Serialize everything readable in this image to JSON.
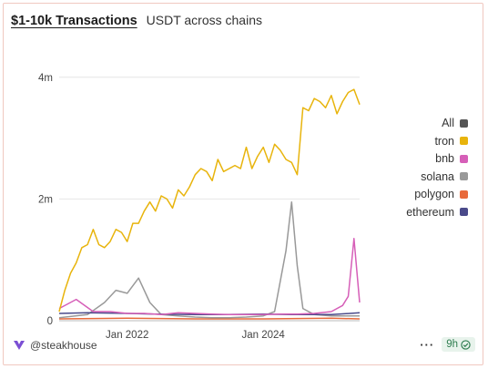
{
  "header": {
    "title": "$1-10k Transactions",
    "subtitle": "USDT across chains"
  },
  "footer": {
    "author": "@steakhouse",
    "more": "···",
    "age": "9h"
  },
  "colors": {
    "All": "#555555",
    "tron": "#e8b40c",
    "bnb": "#d65fb8",
    "solana": "#999999",
    "polygon": "#e86a3c",
    "ethereum": "#4a4a8a"
  },
  "chart_data": {
    "type": "line",
    "x_start": "2021-01",
    "x_end": "2025-06",
    "x_ticks": [
      "Jan 2022",
      "Jan 2024"
    ],
    "y_ticks": [
      "0",
      "2m",
      "4m"
    ],
    "ylim": [
      0,
      4700000
    ],
    "legend_order": [
      "All",
      "tron",
      "bnb",
      "solana",
      "polygon",
      "ethereum"
    ],
    "legend_position": "right",
    "grid": "horizontal",
    "series": [
      {
        "name": "tron",
        "color": "#e8b40c",
        "x": [
          "2021-01",
          "2021-02",
          "2021-03",
          "2021-04",
          "2021-05",
          "2021-06",
          "2021-07",
          "2021-08",
          "2021-09",
          "2021-10",
          "2021-11",
          "2021-12",
          "2022-01",
          "2022-02",
          "2022-03",
          "2022-04",
          "2022-05",
          "2022-06",
          "2022-07",
          "2022-08",
          "2022-09",
          "2022-10",
          "2022-11",
          "2022-12",
          "2023-01",
          "2023-02",
          "2023-03",
          "2023-04",
          "2023-05",
          "2023-06",
          "2023-07",
          "2023-08",
          "2023-09",
          "2023-10",
          "2023-11",
          "2023-12",
          "2024-01",
          "2024-02",
          "2024-03",
          "2024-04",
          "2024-05",
          "2024-06",
          "2024-07",
          "2024-08",
          "2024-09",
          "2024-10",
          "2024-11",
          "2024-12",
          "2025-01",
          "2025-02",
          "2025-03",
          "2025-04",
          "2025-05",
          "2025-06"
        ],
        "values": [
          150000,
          500000,
          780000,
          950000,
          1200000,
          1250000,
          1500000,
          1250000,
          1200000,
          1300000,
          1500000,
          1450000,
          1300000,
          1600000,
          1600000,
          1800000,
          1950000,
          1800000,
          2050000,
          2000000,
          1850000,
          2150000,
          2050000,
          2200000,
          2400000,
          2500000,
          2450000,
          2300000,
          2650000,
          2450000,
          2500000,
          2550000,
          2500000,
          2850000,
          2500000,
          2700000,
          2850000,
          2600000,
          2900000,
          2800000,
          2650000,
          2600000,
          2400000,
          3500000,
          3450000,
          3650000,
          3600000,
          3500000,
          3700000,
          3400000,
          3600000,
          3750000,
          3800000,
          3550000
        ]
      },
      {
        "name": "bnb",
        "color": "#d65fb8",
        "x": [
          "2021-01",
          "2021-04",
          "2021-07",
          "2021-10",
          "2022-01",
          "2022-04",
          "2022-07",
          "2022-10",
          "2023-01",
          "2023-04",
          "2023-07",
          "2023-10",
          "2024-01",
          "2024-04",
          "2024-07",
          "2024-10",
          "2025-01",
          "2025-03",
          "2025-04",
          "2025-05",
          "2025-06"
        ],
        "values": [
          200000,
          350000,
          150000,
          150000,
          120000,
          120000,
          100000,
          130000,
          120000,
          110000,
          100000,
          100000,
          100000,
          110000,
          110000,
          120000,
          150000,
          250000,
          400000,
          1350000,
          300000
        ]
      },
      {
        "name": "solana",
        "color": "#999999",
        "x": [
          "2021-01",
          "2021-06",
          "2021-09",
          "2021-11",
          "2022-01",
          "2022-03",
          "2022-05",
          "2022-07",
          "2022-10",
          "2023-01",
          "2023-04",
          "2023-07",
          "2023-10",
          "2024-01",
          "2024-03",
          "2024-05",
          "2024-06",
          "2024-07",
          "2024-08",
          "2024-10",
          "2025-01",
          "2025-06"
        ],
        "values": [
          50000,
          100000,
          300000,
          500000,
          450000,
          700000,
          300000,
          100000,
          80000,
          60000,
          50000,
          50000,
          60000,
          80000,
          150000,
          1150000,
          1950000,
          900000,
          200000,
          100000,
          80000,
          80000
        ]
      },
      {
        "name": "polygon",
        "color": "#e86a3c",
        "x": [
          "2021-01",
          "2022-01",
          "2023-01",
          "2024-01",
          "2025-01",
          "2025-06"
        ],
        "values": [
          30000,
          40000,
          30000,
          30000,
          40000,
          30000
        ]
      },
      {
        "name": "ethereum",
        "color": "#4a4a8a",
        "x": [
          "2021-01",
          "2021-06",
          "2022-01",
          "2022-06",
          "2023-01",
          "2023-06",
          "2024-01",
          "2024-06",
          "2025-01",
          "2025-06"
        ],
        "values": [
          120000,
          130000,
          120000,
          110000,
          100000,
          100000,
          110000,
          100000,
          100000,
          130000
        ]
      }
    ]
  }
}
